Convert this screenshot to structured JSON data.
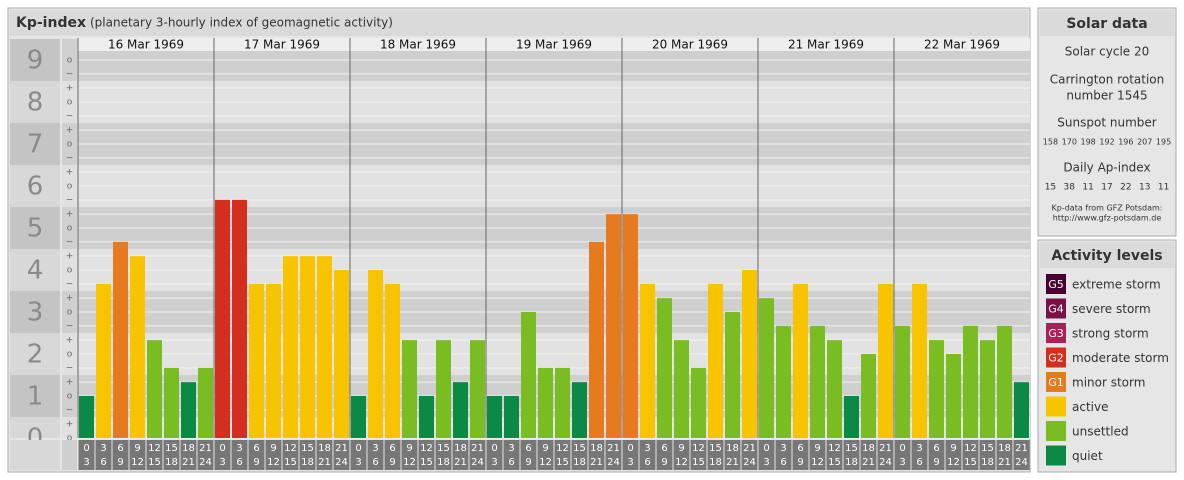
{
  "chart_data": {
    "type": "bar",
    "title": "Kp-index",
    "subtitle": "(planetary 3-hourly index of geomagnetic activity)",
    "days": [
      "16 Mar 1969",
      "17 Mar 1969",
      "18 Mar 1969",
      "19 Mar 1969",
      "20 Mar 1969",
      "21 Mar 1969",
      "22 Mar 1969"
    ],
    "hours": [
      [
        "0",
        "3"
      ],
      [
        "3",
        "6"
      ],
      [
        "6",
        "9"
      ],
      [
        "9",
        "12"
      ],
      [
        "12",
        "15"
      ],
      [
        "15",
        "18"
      ],
      [
        "18",
        "21"
      ],
      [
        "21",
        "24"
      ]
    ],
    "values": [
      1,
      3.67,
      4.67,
      4.33,
      2.33,
      1.67,
      1.33,
      1.67,
      5.67,
      5.67,
      3.67,
      3.67,
      4.33,
      4.33,
      4.33,
      4,
      1,
      4,
      3.67,
      2.33,
      1,
      2.33,
      1.33,
      2.33,
      1,
      1,
      3,
      1.67,
      1.67,
      1.33,
      4.67,
      5.33,
      5.33,
      3.67,
      3.33,
      2.33,
      1.67,
      3.67,
      3,
      4,
      3.33,
      2.67,
      3.67,
      2.67,
      2.33,
      1,
      2,
      3.67,
      2.67,
      3.67,
      2.33,
      2,
      2.67,
      2.33,
      2.67,
      1.33
    ],
    "colors": [
      "#0c8a45",
      "#f8c400",
      "#e67a1e",
      "#f8c400",
      "#7abd23",
      "#7abd23",
      "#0c8a45",
      "#7abd23",
      "#d42e1e",
      "#d42e1e",
      "#f8c400",
      "#f8c400",
      "#f8c400",
      "#f8c400",
      "#f8c400",
      "#f8c400",
      "#0c8a45",
      "#f8c400",
      "#f8c400",
      "#7abd23",
      "#0c8a45",
      "#7abd23",
      "#0c8a45",
      "#7abd23",
      "#0c8a45",
      "#0c8a45",
      "#7abd23",
      "#7abd23",
      "#7abd23",
      "#0c8a45",
      "#e67a1e",
      "#e67a1e",
      "#e67a1e",
      "#f8c400",
      "#7abd23",
      "#7abd23",
      "#7abd23",
      "#f8c400",
      "#7abd23",
      "#f8c400",
      "#7abd23",
      "#7abd23",
      "#f8c400",
      "#7abd23",
      "#7abd23",
      "#0c8a45",
      "#7abd23",
      "#f8c400",
      "#7abd23",
      "#f8c400",
      "#7abd23",
      "#7abd23",
      "#7abd23",
      "#7abd23",
      "#7abd23",
      "#0c8a45"
    ],
    "ylim": [
      0,
      9
    ],
    "yticks": [
      0,
      1,
      2,
      3,
      4,
      5,
      6,
      7,
      8,
      9
    ],
    "minor_ticks": [
      {
        "value": 0,
        "label": "o"
      },
      {
        "value": 0.33,
        "label": "+"
      },
      {
        "value": 0.67,
        "label": "−"
      },
      {
        "value": 1,
        "label": "o"
      },
      {
        "value": 1.33,
        "label": "+"
      },
      {
        "value": 1.67,
        "label": "−"
      },
      {
        "value": 2,
        "label": "o"
      },
      {
        "value": 2.33,
        "label": "+"
      },
      {
        "value": 2.67,
        "label": "−"
      },
      {
        "value": 3,
        "label": "o"
      },
      {
        "value": 3.33,
        "label": "+"
      },
      {
        "value": 3.67,
        "label": "−"
      },
      {
        "value": 4,
        "label": "o"
      },
      {
        "value": 4.33,
        "label": "+"
      },
      {
        "value": 4.67,
        "label": "−"
      },
      {
        "value": 5,
        "label": "o"
      },
      {
        "value": 5.33,
        "label": "+"
      },
      {
        "value": 5.67,
        "label": "−"
      },
      {
        "value": 6,
        "label": "o"
      },
      {
        "value": 6.33,
        "label": "+"
      },
      {
        "value": 6.67,
        "label": "−"
      },
      {
        "value": 7,
        "label": "o"
      },
      {
        "value": 7.33,
        "label": "+"
      },
      {
        "value": 7.67,
        "label": "−"
      },
      {
        "value": 8,
        "label": "o"
      },
      {
        "value": 8.33,
        "label": "+"
      },
      {
        "value": 8.67,
        "label": "−"
      },
      {
        "value": 9,
        "label": "o"
      }
    ],
    "grid": true
  },
  "solar_data": {
    "title": "Solar data",
    "solar_cycle": "Solar cycle 20",
    "carrington": [
      "Carrington rotation",
      "number 1545"
    ],
    "sunspot_title": "Sunspot number",
    "sunspot_numbers": [
      158,
      170,
      198,
      192,
      196,
      207,
      195
    ],
    "ap_title": "Daily Ap-index",
    "ap_index": [
      15,
      38,
      11,
      17,
      22,
      13,
      11
    ],
    "source": "Kp-data from GFZ Potsdam:",
    "source_url": "http://www.gfz-potsdam.de"
  },
  "activity_levels": {
    "title": "Activity levels",
    "items": [
      {
        "badge": "G5",
        "label": "extreme storm",
        "color": "#4a0030"
      },
      {
        "badge": "G4",
        "label": "severe storm",
        "color": "#7a1048"
      },
      {
        "badge": "G3",
        "label": "strong storm",
        "color": "#b01e5a"
      },
      {
        "badge": "G2",
        "label": "moderate storm",
        "color": "#d42e1e"
      },
      {
        "badge": "G1",
        "label": "minor storm",
        "color": "#e67a1e"
      },
      {
        "label": "active",
        "color": "#f8c400"
      },
      {
        "label": "unsettled",
        "color": "#7abd23"
      },
      {
        "label": "quiet",
        "color": "#0c8a45"
      }
    ]
  }
}
